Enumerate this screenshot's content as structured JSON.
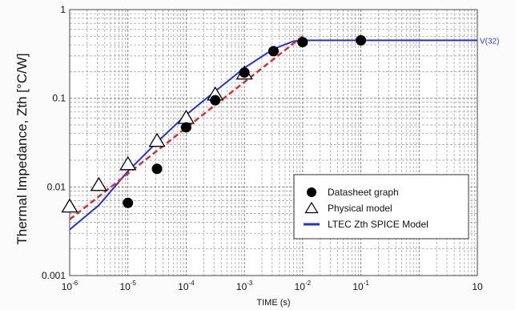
{
  "chart_data": {
    "type": "scatter",
    "xlabel": "TIME (s)",
    "ylabel": "Thermal Impedance, Zth [°C/W]",
    "x_scale": "log",
    "y_scale": "log",
    "xlim": [
      1e-06,
      10
    ],
    "ylim": [
      0.001,
      1
    ],
    "grid": true,
    "x_ticks": [
      {
        "value": 1e-06,
        "base": "10",
        "exp": "-6"
      },
      {
        "value": 1e-05,
        "base": "10",
        "exp": "-5"
      },
      {
        "value": 0.0001,
        "base": "10",
        "exp": "-4"
      },
      {
        "value": 0.001,
        "base": "10",
        "exp": "-3"
      },
      {
        "value": 0.01,
        "base": "10",
        "exp": "-2"
      },
      {
        "value": 0.1,
        "base": "10",
        "exp": "-1"
      },
      {
        "value": 10,
        "base": "10",
        "exp": ""
      }
    ],
    "y_ticks": [
      {
        "value": 1,
        "label": "1"
      },
      {
        "value": 0.1,
        "label": "0.1"
      },
      {
        "value": 0.01,
        "label": "0.01"
      },
      {
        "value": 0.001,
        "label": "0.001"
      }
    ],
    "legend_position": "bottom-right",
    "series": [
      {
        "name": "Datasheet graph",
        "kind": "filled-circle",
        "color": "#000000",
        "points": [
          {
            "x": 1e-05,
            "y": 0.0066
          },
          {
            "x": 3.16e-05,
            "y": 0.016
          },
          {
            "x": 0.0001,
            "y": 0.047
          },
          {
            "x": 0.000316,
            "y": 0.095
          },
          {
            "x": 0.001,
            "y": 0.195
          },
          {
            "x": 0.00316,
            "y": 0.34
          },
          {
            "x": 0.01,
            "y": 0.43
          },
          {
            "x": 0.1,
            "y": 0.45
          }
        ]
      },
      {
        "name": "Physical model",
        "kind": "open-triangle",
        "color": "#000000",
        "points": [
          {
            "x": 1e-06,
            "y": 0.006
          },
          {
            "x": 3.16e-06,
            "y": 0.0105
          },
          {
            "x": 1e-05,
            "y": 0.018
          },
          {
            "x": 3.16e-05,
            "y": 0.033
          },
          {
            "x": 0.0001,
            "y": 0.06
          },
          {
            "x": 0.000316,
            "y": 0.11
          },
          {
            "x": 0.001,
            "y": 0.19
          }
        ]
      },
      {
        "name": "LTEC Zth SPICE Model",
        "kind": "line",
        "color": "#1f2ff0",
        "points": [
          {
            "x": 1e-06,
            "y": 0.0033
          },
          {
            "x": 3.16e-06,
            "y": 0.0062
          },
          {
            "x": 1e-05,
            "y": 0.015
          },
          {
            "x": 3.16e-05,
            "y": 0.032
          },
          {
            "x": 0.0001,
            "y": 0.065
          },
          {
            "x": 0.000316,
            "y": 0.12
          },
          {
            "x": 0.001,
            "y": 0.22
          },
          {
            "x": 0.00316,
            "y": 0.36
          },
          {
            "x": 0.007,
            "y": 0.44
          },
          {
            "x": 0.01,
            "y": 0.45
          },
          {
            "x": 10,
            "y": 0.45
          }
        ]
      },
      {
        "kind": "dashed-line",
        "color": "#e8232a",
        "points": [
          {
            "x": 1e-06,
            "y": 0.0043
          },
          {
            "x": 0.01,
            "y": 0.5
          }
        ]
      }
    ],
    "annotations": [
      {
        "text": "V(32)",
        "x": 10,
        "y": 0.45,
        "color": "#2a3fdc"
      }
    ]
  }
}
